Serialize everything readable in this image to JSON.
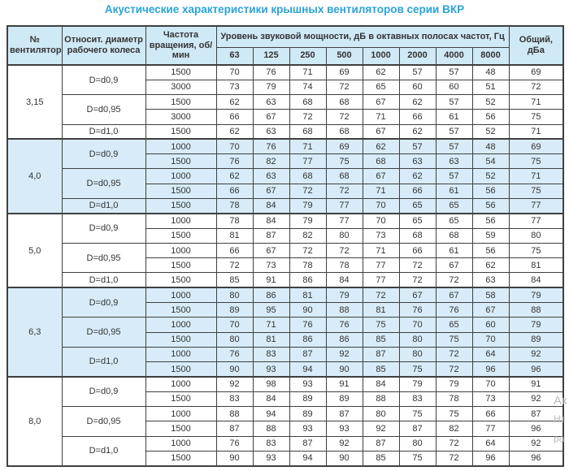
{
  "title": "Акустические характеристики крышных вентиляторов серии ВКР",
  "colors": {
    "title_blue": "#29a3d8",
    "header_fill": "#cfe9f6",
    "shaded_group_fill": "#d7ecf8",
    "border": "#3f3f3f",
    "text": "#333333",
    "watermark_gray": "#b8bcbe"
  },
  "table": {
    "headers": {
      "fan_no": "№ вентилятора",
      "diameter": "Относит. диаметр рабочего колеса",
      "rpm": "Частота вращения, об/мин",
      "spl_group": "Уровень звуковой мощности, дБ в октавных полосах частот, Гц",
      "freqs": [
        "63",
        "125",
        "250",
        "500",
        "1000",
        "2000",
        "4000",
        "8000"
      ],
      "total": "Общий, дБа"
    },
    "groups": [
      {
        "fan": "3,15",
        "shaded": false,
        "subgroups": [
          {
            "diameter": "D=d0,9",
            "rows": [
              {
                "rpm": "1500",
                "values": [
                  70,
                  76,
                  71,
                  69,
                  62,
                  57,
                  57,
                  48
                ],
                "total": 69
              },
              {
                "rpm": "3000",
                "values": [
                  73,
                  79,
                  74,
                  72,
                  65,
                  60,
                  60,
                  51
                ],
                "total": 72
              }
            ]
          },
          {
            "diameter": "D=d0,95",
            "rows": [
              {
                "rpm": "1500",
                "values": [
                  62,
                  63,
                  68,
                  68,
                  67,
                  62,
                  57,
                  52
                ],
                "total": 71
              },
              {
                "rpm": "3000",
                "values": [
                  66,
                  67,
                  72,
                  72,
                  71,
                  66,
                  61,
                  56
                ],
                "total": 75
              }
            ]
          },
          {
            "diameter": "D=d1,0",
            "rows": [
              {
                "rpm": "1500",
                "values": [
                  62,
                  63,
                  68,
                  68,
                  67,
                  62,
                  57,
                  52
                ],
                "total": 71
              }
            ]
          }
        ]
      },
      {
        "fan": "4,0",
        "shaded": true,
        "subgroups": [
          {
            "diameter": "D=d0,9",
            "rows": [
              {
                "rpm": "1000",
                "values": [
                  70,
                  76,
                  71,
                  69,
                  62,
                  57,
                  57,
                  48
                ],
                "total": 69
              },
              {
                "rpm": "1500",
                "values": [
                  76,
                  82,
                  77,
                  75,
                  68,
                  63,
                  63,
                  54
                ],
                "total": 75
              }
            ]
          },
          {
            "diameter": "D=d0,95",
            "rows": [
              {
                "rpm": "1000",
                "values": [
                  62,
                  63,
                  68,
                  68,
                  67,
                  62,
                  57,
                  52
                ],
                "total": 71
              },
              {
                "rpm": "1500",
                "values": [
                  66,
                  67,
                  72,
                  72,
                  71,
                  66,
                  61,
                  56
                ],
                "total": 75
              }
            ]
          },
          {
            "diameter": "D=d1,0",
            "rows": [
              {
                "rpm": "1500",
                "values": [
                  78,
                  84,
                  79,
                  77,
                  70,
                  65,
                  65,
                  56
                ],
                "total": 77
              }
            ]
          }
        ]
      },
      {
        "fan": "5,0",
        "shaded": false,
        "subgroups": [
          {
            "diameter": "D=d0,9",
            "rows": [
              {
                "rpm": "1000",
                "values": [
                  78,
                  84,
                  79,
                  77,
                  70,
                  65,
                  65,
                  56
                ],
                "total": 77
              },
              {
                "rpm": "1500",
                "values": [
                  81,
                  87,
                  82,
                  80,
                  73,
                  68,
                  68,
                  59
                ],
                "total": 80
              }
            ]
          },
          {
            "diameter": "D=d0,95",
            "rows": [
              {
                "rpm": "1000",
                "values": [
                  66,
                  67,
                  72,
                  72,
                  71,
                  66,
                  61,
                  56
                ],
                "total": 75
              },
              {
                "rpm": "1500",
                "values": [
                  72,
                  73,
                  78,
                  78,
                  77,
                  72,
                  67,
                  62
                ],
                "total": 81
              }
            ]
          },
          {
            "diameter": "D=d1,0",
            "rows": [
              {
                "rpm": "1500",
                "values": [
                  85,
                  91,
                  86,
                  84,
                  77,
                  72,
                  72,
                  63
                ],
                "total": 84
              }
            ]
          }
        ]
      },
      {
        "fan": "6,3",
        "shaded": true,
        "subgroups": [
          {
            "diameter": "D=d0,9",
            "rows": [
              {
                "rpm": "1000",
                "values": [
                  80,
                  86,
                  81,
                  79,
                  72,
                  67,
                  67,
                  58
                ],
                "total": 79
              },
              {
                "rpm": "1500",
                "values": [
                  89,
                  95,
                  90,
                  88,
                  81,
                  76,
                  76,
                  67
                ],
                "total": 88
              }
            ]
          },
          {
            "diameter": "D=d0,95",
            "rows": [
              {
                "rpm": "1000",
                "values": [
                  70,
                  71,
                  76,
                  76,
                  75,
                  70,
                  65,
                  60
                ],
                "total": 79
              },
              {
                "rpm": "1500",
                "values": [
                  80,
                  81,
                  86,
                  86,
                  85,
                  80,
                  75,
                  70
                ],
                "total": 89
              }
            ]
          },
          {
            "diameter": "D=d1,0",
            "rows": [
              {
                "rpm": "1000",
                "values": [
                  76,
                  83,
                  87,
                  92,
                  87,
                  80,
                  72,
                  64
                ],
                "total": 92
              },
              {
                "rpm": "1500",
                "values": [
                  90,
                  93,
                  94,
                  90,
                  85,
                  75,
                  72,
                  96
                ],
                "total": 96
              }
            ]
          }
        ]
      },
      {
        "fan": "8,0",
        "shaded": false,
        "subgroups": [
          {
            "diameter": "D=d0,9",
            "rows": [
              {
                "rpm": "1000",
                "values": [
                  92,
                  98,
                  93,
                  91,
                  84,
                  79,
                  79,
                  70
                ],
                "total": 91
              },
              {
                "rpm": "1500",
                "values": [
                  83,
                  84,
                  89,
                  89,
                  88,
                  83,
                  78,
                  73
                ],
                "total": 92
              }
            ]
          },
          {
            "diameter": "D=d0,95",
            "rows": [
              {
                "rpm": "1000",
                "values": [
                  88,
                  94,
                  89,
                  87,
                  80,
                  75,
                  75,
                  66
                ],
                "total": 87
              },
              {
                "rpm": "1500",
                "values": [
                  87,
                  88,
                  93,
                  93,
                  92,
                  87,
                  82,
                  77
                ],
                "total": 96
              }
            ]
          },
          {
            "diameter": "D=d1,0",
            "rows": [
              {
                "rpm": "1000",
                "values": [
                  76,
                  83,
                  87,
                  92,
                  87,
                  80,
                  72,
                  64
                ],
                "total": 92
              },
              {
                "rpm": "1500",
                "values": [
                  90,
                  93,
                  94,
                  90,
                  85,
                  75,
                  72,
                  96
                ],
                "total": 96
              }
            ]
          }
        ]
      }
    ]
  },
  "watermark": {
    "fragments": [
      "Ак",
      "Нт",
      "ра"
    ]
  }
}
